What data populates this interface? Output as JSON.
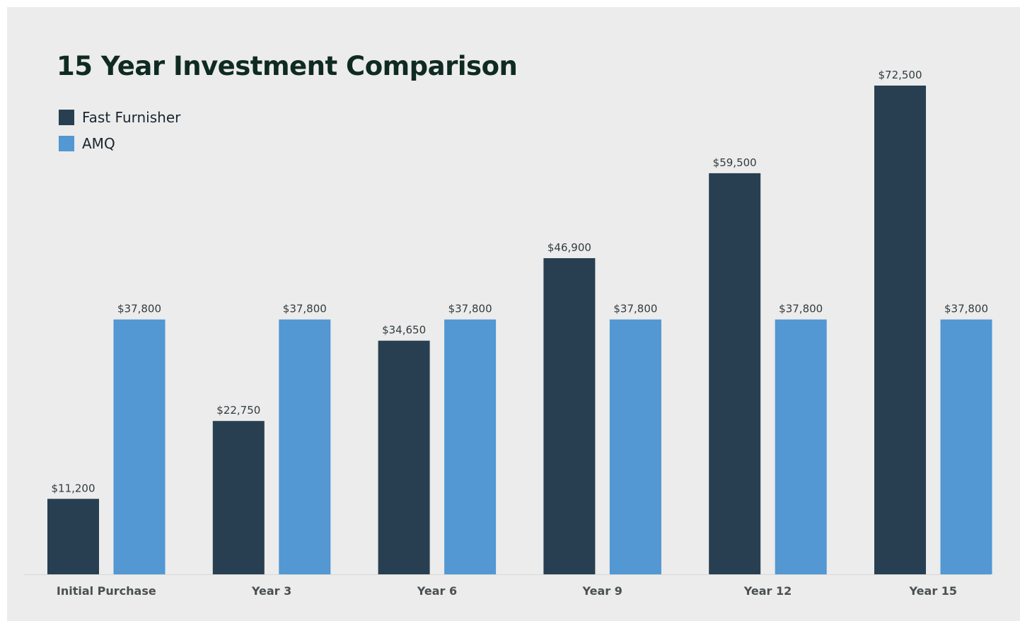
{
  "chart_data": {
    "type": "bar",
    "title": "15 Year Investment Comparison",
    "xlabel": "",
    "ylabel": "",
    "categories": [
      "Initial Purchase",
      "Year 3",
      "Year 6",
      "Year 9",
      "Year 12",
      "Year 15"
    ],
    "series": [
      {
        "name": "Fast Furnisher",
        "color": "#283f52",
        "values": [
          11200,
          22750,
          34650,
          46900,
          59500,
          72500
        ],
        "labels": [
          "$11,200",
          "$22,750",
          "$34,650",
          "$46,900",
          "$59,500",
          "$72,500"
        ]
      },
      {
        "name": "AMQ",
        "color": "#5397d3",
        "values": [
          37800,
          37800,
          37800,
          37800,
          37800,
          37800
        ],
        "labels": [
          "$37,800",
          "$37,800",
          "$37,800",
          "$37,800",
          "$37,800",
          "$37,800"
        ]
      }
    ],
    "ylim": [
      0,
      80000
    ],
    "grid": false,
    "legend": "top-left"
  }
}
